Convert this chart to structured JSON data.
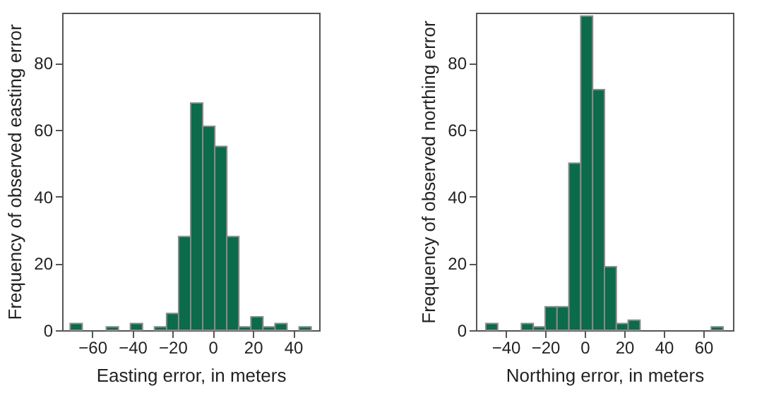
{
  "chart_data": [
    {
      "type": "histogram",
      "xlabel": "Easting error, in meters",
      "ylabel": "Frequency of observed easting error",
      "color": "#0b6b4a",
      "bins": [
        -71,
        -65,
        -59,
        -53,
        -47,
        -41,
        -35,
        -29,
        -23,
        -17,
        -11,
        -5,
        1,
        7,
        13,
        19,
        25,
        31,
        37,
        43,
        49
      ],
      "values": [
        2,
        0,
        0,
        1,
        0,
        2,
        0,
        1,
        5,
        28,
        68,
        61,
        55,
        28,
        1,
        4,
        1,
        2,
        0,
        1
      ],
      "xlim": [
        -75,
        53
      ],
      "xticks": [
        -60,
        -40,
        -20,
        0,
        20,
        40
      ],
      "ylim": [
        0,
        95
      ],
      "yticks": [
        0,
        20,
        40,
        60,
        80
      ],
      "grid": false
    },
    {
      "type": "histogram",
      "xlabel": "Northing error, in meters",
      "ylabel": "Frequency of observed northing error",
      "color": "#0b6b4a",
      "bins": [
        -50,
        -44,
        -38,
        -32,
        -26,
        -20,
        -14,
        -8,
        -2,
        4,
        10,
        16,
        22,
        28,
        34,
        40,
        46,
        52,
        58,
        64,
        70
      ],
      "values": [
        2,
        0,
        0,
        2,
        1,
        7,
        7,
        50,
        94,
        72,
        19,
        2,
        3,
        0,
        0,
        0,
        0,
        0,
        0,
        1
      ],
      "xlim": [
        -55,
        75
      ],
      "xticks": [
        -40,
        -20,
        0,
        20,
        40,
        60
      ],
      "ylim": [
        0,
        95
      ],
      "yticks": [
        0,
        20,
        40,
        60,
        80
      ],
      "grid": false
    }
  ]
}
